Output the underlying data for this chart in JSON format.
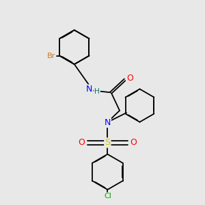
{
  "background_color": "#e8e8e8",
  "atom_colors": {
    "N": "#0000ff",
    "O": "#ff0000",
    "S": "#cccc00",
    "Br": "#cc7722",
    "Cl": "#00aa00",
    "H": "#007070",
    "C": "#000000"
  },
  "bond_lw": 1.3,
  "ring_dbo": 0.018,
  "fig_bg": "#e8e8e8"
}
